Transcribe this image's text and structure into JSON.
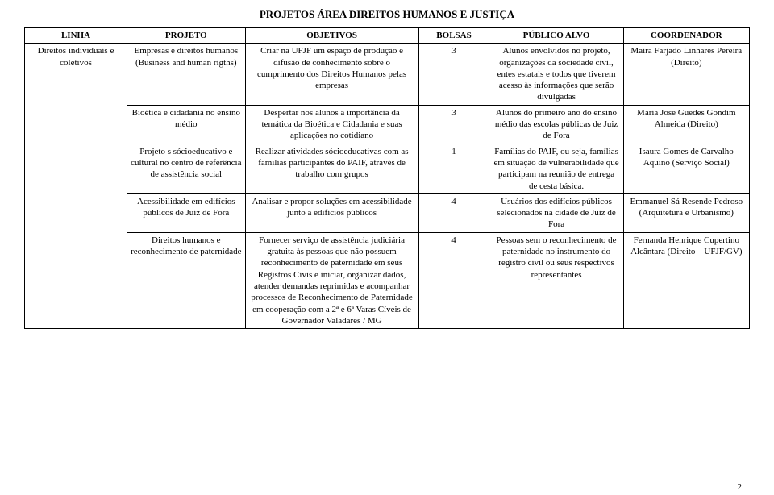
{
  "title": "PROJETOS ÁREA DIREITOS HUMANOS E JUSTIÇA",
  "page_number": "2",
  "headers": {
    "linha": "LINHA",
    "projeto": "PROJETO",
    "objetivos": "OBJETIVOS",
    "bolsas": "BOLSAS",
    "publico": "PÚBLICO ALVO",
    "coord": "COORDENADOR"
  },
  "rows": [
    {
      "linha": "Direitos individuais e coletivos",
      "projeto": "Empresas e direitos humanos (Business and human rigths)",
      "objetivos": "Criar na UFJF um espaço de produção e difusão de conhecimento sobre o cumprimento dos Direitos Humanos pelas empresas",
      "bolsas": "3",
      "publico": "Alunos envolvidos no projeto, organizações da sociedade civil, entes estatais e todos que tiverem acesso às informações que serão divulgadas",
      "coord": "Maira Farjado Linhares Pereira (Direito)"
    },
    {
      "projeto": "Bioética e cidadania no ensino médio",
      "objetivos": "Despertar nos alunos a importância da temática da Bioética e Cidadania e suas aplicações no cotidiano",
      "bolsas": "3",
      "publico": "Alunos do primeiro ano do ensino médio das escolas públicas de Juiz de Fora",
      "coord": "Maria Jose Guedes Gondim Almeida (Direito)"
    },
    {
      "projeto": "Projeto s sócioeducativo e cultural no centro de referência de assistência social",
      "objetivos": "Realizar atividades sócioeducativas com as famílias participantes do PAIF, através de trabalho com grupos",
      "bolsas": "1",
      "publico": "Famílias do PAIF, ou seja, famílias em situação de vulnerabilidade que participam na reunião de entrega de cesta básica.",
      "coord": "Isaura Gomes de Carvalho Aquino (Serviço Social)"
    },
    {
      "projeto": "Acessibilidade em edifícios públicos de Juiz de Fora",
      "objetivos": "Analisar e propor soluções em acessibilidade junto a edifícios públicos",
      "bolsas": "4",
      "publico": "Usuários dos edifícios públicos selecionados na cidade de Juiz de Fora",
      "coord": "Emmanuel Sá Resende Pedroso (Arquitetura e Urbanismo)"
    },
    {
      "projeto": "Direitos humanos e reconhecimento de paternidade",
      "objetivos": "Fornecer serviço de assistência judiciária gratuita às pessoas que não possuem reconhecimento de paternidade em seus Registros Civis e iniciar, organizar dados, atender demandas reprimidas e acompanhar processos de Reconhecimento de Paternidade em cooperação com a 2ª e 6ª Varas Cíveis de Governador Valadares / MG",
      "bolsas": "4",
      "publico": "Pessoas sem o reconhecimento de paternidade no instrumento do registro civil ou seus respectivos representantes",
      "coord": "Fernanda Henrique Cupertino Alcântara\n(Direito – UFJF/GV)"
    }
  ]
}
